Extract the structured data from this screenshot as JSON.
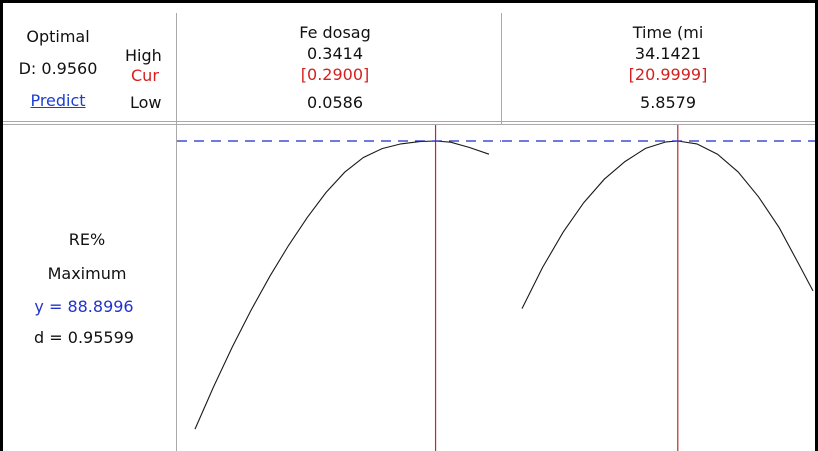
{
  "optimal_box": {
    "title": "Optimal",
    "d_value": "D: 0.9560",
    "predict_link": "Predict"
  },
  "row_labels": {
    "high": "High",
    "cur": "Cur",
    "low": "Low"
  },
  "response": {
    "name": "RE%",
    "goal": "Maximum",
    "y_text": "y = 88.8996",
    "d_text": "d = 0.95599"
  },
  "colors": {
    "cur_marker": "#c0282a",
    "target_line": "#1a2ac8",
    "curve": "#1a1a1a",
    "link": "#1c3fd1"
  },
  "chart_data": [
    {
      "type": "line",
      "factor": "Fe dosag",
      "high": "0.3414",
      "cur": "[0.2900]",
      "low": "0.0586",
      "xlim": [
        0.0586,
        0.3414
      ],
      "current_x": 0.29,
      "x": [
        0.0586,
        0.0766,
        0.0946,
        0.1126,
        0.1306,
        0.1486,
        0.1666,
        0.1846,
        0.2026,
        0.2206,
        0.2386,
        0.2566,
        0.2746,
        0.29,
        0.3046,
        0.3226,
        0.3414
      ],
      "y_rel": [
        0.02,
        0.165,
        0.3,
        0.425,
        0.54,
        0.645,
        0.74,
        0.825,
        0.894,
        0.944,
        0.974,
        0.99,
        0.998,
        1.0,
        0.996,
        0.978,
        0.955
      ],
      "target_rel": 1.0
    },
    {
      "type": "line",
      "factor": "Time (mi",
      "high": "34.1421",
      "cur": "[20.9999]",
      "low": "5.8579",
      "xlim": [
        5.8579,
        34.1421
      ],
      "current_x": 20.9999,
      "x": [
        5.8579,
        7.8579,
        9.8579,
        11.8579,
        13.8579,
        15.8579,
        17.8579,
        19.8579,
        20.9999,
        22.8579,
        24.8579,
        26.8579,
        28.8579,
        30.8579,
        32.8579,
        34.1421
      ],
      "y_rel": [
        0.43,
        0.57,
        0.69,
        0.79,
        0.87,
        0.93,
        0.975,
        0.997,
        1.0,
        0.99,
        0.955,
        0.895,
        0.81,
        0.705,
        0.575,
        0.49
      ],
      "target_rel": 1.0
    }
  ]
}
